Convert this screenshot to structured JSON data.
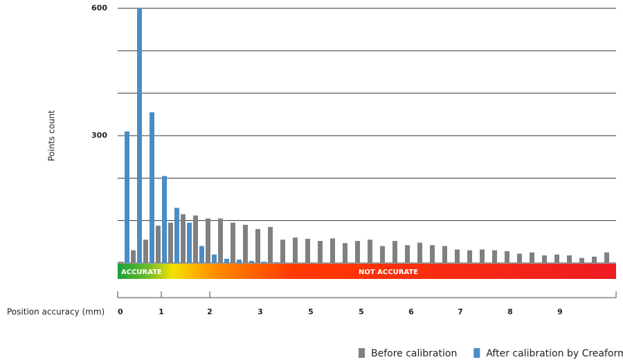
{
  "chart_data": {
    "type": "bar",
    "y_label": "Points count",
    "x_label": "Position accuracy (mm)",
    "x_labels": [
      "0",
      "1",
      "2",
      "3",
      "5",
      "5",
      "6",
      "7",
      "8",
      "9"
    ],
    "band_labels": [
      "ACCURATE",
      "NOT ACCURATE"
    ],
    "ylim": [
      0,
      600
    ],
    "yticks": [
      {
        "value": 0,
        "label": null
      },
      {
        "value": 100,
        "label": null
      },
      {
        "value": 200,
        "label": null
      },
      300,
      {
        "value": 400,
        "label": null
      },
      {
        "value": 500,
        "label": null
      },
      600
    ],
    "grid": true,
    "legend": "bottom-right",
    "series": [
      {
        "name": "Before calibration",
        "color": "#808080",
        "values": [
          3,
          30,
          55,
          88,
          95,
          115,
          112,
          105,
          105,
          95,
          90,
          80,
          85,
          55,
          60,
          57,
          52,
          58,
          47,
          52,
          55,
          40,
          52,
          42,
          48,
          42,
          40,
          32,
          30,
          32,
          30,
          28,
          22,
          25,
          18,
          20,
          18,
          12,
          15,
          25
        ]
      },
      {
        "name": "After calibration by Creaform",
        "color": "#4a8cc4",
        "values": [
          310,
          600,
          355,
          205,
          130,
          95,
          40,
          20,
          10,
          8,
          5,
          3,
          2,
          1,
          0,
          0,
          0,
          0,
          0,
          0,
          0,
          0,
          0,
          0,
          0,
          0,
          0,
          0,
          0,
          0,
          0,
          0,
          0,
          0,
          0,
          0,
          0,
          0,
          0,
          0
        ]
      }
    ]
  }
}
